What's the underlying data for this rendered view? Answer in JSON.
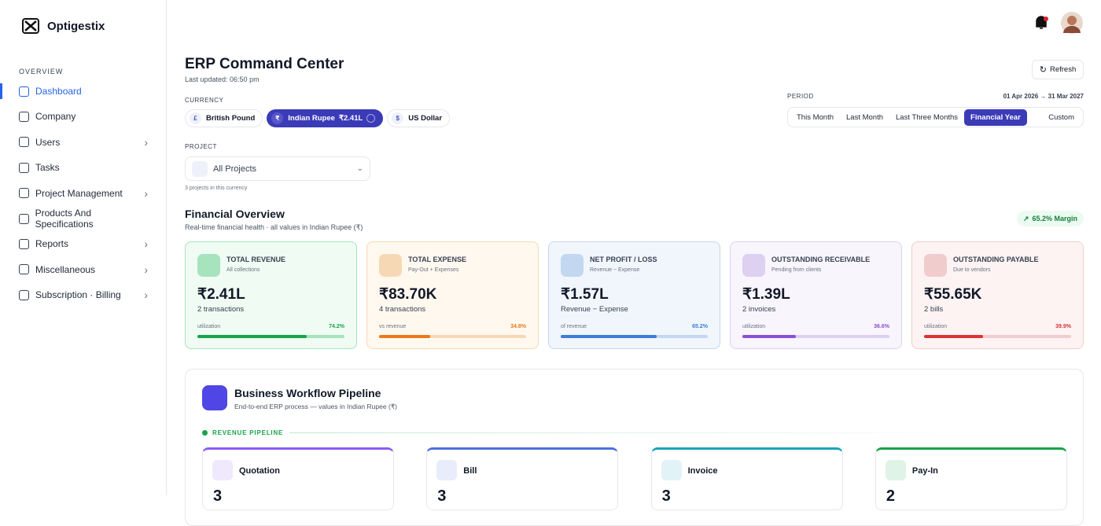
{
  "sidebar": {
    "brand": "Optigestix",
    "section": "OVERVIEW",
    "items": [
      {
        "label": "Dashboard",
        "active": true,
        "expandable": false
      },
      {
        "label": "Company",
        "active": false,
        "expandable": false
      },
      {
        "label": "Users",
        "active": false,
        "expandable": true
      },
      {
        "label": "Tasks",
        "active": false,
        "expandable": false
      },
      {
        "label": "Project Management",
        "active": false,
        "expandable": true
      },
      {
        "label": "Products And Specifications",
        "active": false,
        "expandable": false
      },
      {
        "label": "Reports",
        "active": false,
        "expandable": true
      },
      {
        "label": "Miscellaneous",
        "active": false,
        "expandable": true
      },
      {
        "label": "Subscription · Billing",
        "active": false,
        "expandable": true
      }
    ]
  },
  "header": {
    "title": "ERP Command Center",
    "updated": "Last updated: 06:50 pm",
    "refresh": "Refresh"
  },
  "currency": {
    "label": "CURRENCY",
    "options": [
      {
        "symbol": "£",
        "name": "British Pound",
        "selected": false
      },
      {
        "symbol": "₹",
        "name": "Indian Rupee",
        "amount": "₹2.41L",
        "selected": true
      },
      {
        "symbol": "$",
        "name": "US Dollar",
        "selected": false
      }
    ]
  },
  "period": {
    "label": "PERIOD",
    "range": "01 Apr 2026 → 31 Mar 2027",
    "options": [
      "This Month",
      "Last Month",
      "Last Three Months",
      "Financial Year",
      "Custom"
    ],
    "selected": 3
  },
  "project": {
    "label": "PROJECT",
    "value": "All Projects",
    "note": "3 projects in this currency"
  },
  "overview": {
    "title": "Financial Overview",
    "subtitle": "Real-time financial health · all values in Indian Rupee (₹)",
    "margin": "65.2% Margin",
    "cards": [
      {
        "title": "TOTAL REVENUE",
        "subtitle": "All collections",
        "value": "₹2.41L",
        "count": "2 transactions",
        "metric_label": "utilization",
        "metric": {
          "value": 74.2,
          "label": "74.2%"
        },
        "color": "#16a34a",
        "bg": "#effbf3",
        "border": "#a7e3bd"
      },
      {
        "title": "TOTAL EXPENSE",
        "subtitle": "Pay-Out + Expenses",
        "value": "₹83.70K",
        "count": "4 transactions",
        "metric_label": "vs revenue",
        "metric": {
          "value": 34.8,
          "label": "34.8%"
        },
        "color": "#ea7a1a",
        "bg": "#fff8ef",
        "border": "#f6d9b4"
      },
      {
        "title": "NET PROFIT / LOSS",
        "subtitle": "Revenue − Expense",
        "value": "₹1.57L",
        "count": "Revenue − Expense",
        "metric_label": "of revenue",
        "metric": {
          "value": 65.2,
          "label": "65.2%"
        },
        "color": "#3b7dd8",
        "bg": "#f1f6fd",
        "border": "#c3d7f0"
      },
      {
        "title": "OUTSTANDING RECEIVABLE",
        "subtitle": "Pending from clients",
        "value": "₹1.39L",
        "count": "2 invoices",
        "metric_label": "utilization",
        "metric": {
          "value": 36.6,
          "label": "36.6%"
        },
        "color": "#8b4fd6",
        "bg": "#f8f5fd",
        "border": "#ddd0f1"
      },
      {
        "title": "OUTSTANDING PAYABLE",
        "subtitle": "Due to vendors",
        "value": "₹55.65K",
        "count": "2 bills",
        "metric_label": "utilization",
        "metric": {
          "value": 39.9,
          "label": "39.9%"
        },
        "color": "#d93535",
        "bg": "#fdf3f3",
        "border": "#f1cccc"
      }
    ]
  },
  "pipeline": {
    "title": "Business Workflow Pipeline",
    "subtitle": "End-to-end ERP process — values in Indian Rupee (₹)",
    "section": "REVENUE PIPELINE",
    "stages": [
      {
        "name": "Quotation",
        "count": "3",
        "color": "#8b5cf6"
      },
      {
        "name": "Bill",
        "count": "3",
        "color": "#4f6fe0"
      },
      {
        "name": "Invoice",
        "count": "3",
        "color": "#1ba3b8"
      },
      {
        "name": "Pay-In",
        "count": "2",
        "color": "#16a34a"
      }
    ]
  }
}
